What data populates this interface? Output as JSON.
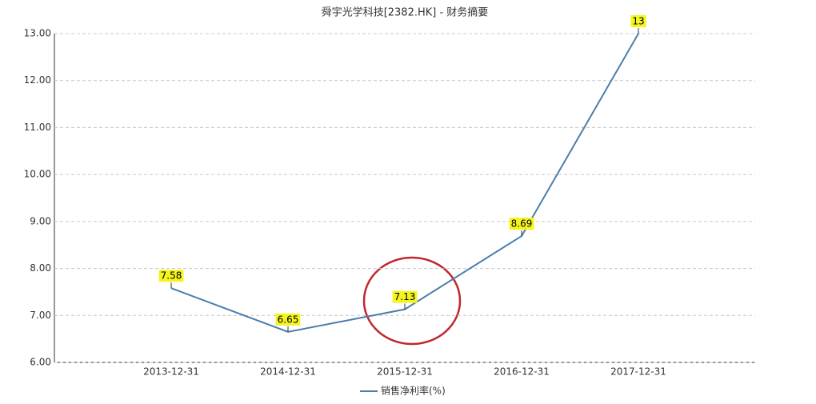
{
  "chart_data": {
    "type": "line",
    "title": "舜宇光学科技[2382.HK] - 财务摘要",
    "categories": [
      "2013-12-31",
      "2014-12-31",
      "2015-12-31",
      "2016-12-31",
      "2017-12-31"
    ],
    "series": [
      {
        "name": "销售净利率(%)",
        "color": "#4a7eab",
        "values": [
          7.58,
          6.65,
          7.13,
          8.69,
          13
        ]
      }
    ],
    "ylim": [
      6,
      13
    ],
    "yticks": [
      {
        "value": 6,
        "label": "6.00"
      },
      {
        "value": 7,
        "label": "7.00"
      },
      {
        "value": 8,
        "label": "8.00"
      },
      {
        "value": 9,
        "label": "9.00"
      },
      {
        "value": 10,
        "label": "10.00"
      },
      {
        "value": 11,
        "label": "11.00"
      },
      {
        "value": 12,
        "label": "12.00"
      },
      {
        "value": 13,
        "label": "13.00"
      }
    ],
    "grid": true,
    "legend": "bottom"
  }
}
